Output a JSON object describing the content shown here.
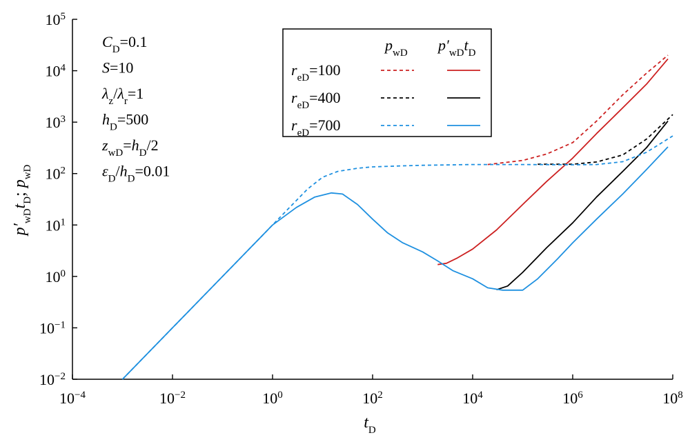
{
  "chart_data": {
    "type": "line",
    "x_scale": "log",
    "y_scale": "log",
    "xlim": [
      0.0001,
      100000000
    ],
    "ylim": [
      0.01,
      100000
    ],
    "x_ticks": [
      {
        "value": 0.0001,
        "base": "10",
        "exp": "−4"
      },
      {
        "value": 0.01,
        "base": "10",
        "exp": "−2"
      },
      {
        "value": 1,
        "base": "10",
        "exp": "0"
      },
      {
        "value": 100,
        "base": "10",
        "exp": "2"
      },
      {
        "value": 10000,
        "base": "10",
        "exp": "4"
      },
      {
        "value": 1000000,
        "base": "10",
        "exp": "6"
      },
      {
        "value": 100000000,
        "base": "10",
        "exp": "8"
      }
    ],
    "y_ticks": [
      {
        "value": 0.01,
        "base": "10",
        "exp": "−2"
      },
      {
        "value": 0.1,
        "base": "10",
        "exp": "−1"
      },
      {
        "value": 1,
        "base": "10",
        "exp": "0"
      },
      {
        "value": 10,
        "base": "10",
        "exp": "1"
      },
      {
        "value": 100,
        "base": "10",
        "exp": "2"
      },
      {
        "value": 1000,
        "base": "10",
        "exp": "3"
      },
      {
        "value": 10000,
        "base": "10",
        "exp": "4"
      },
      {
        "value": 100000,
        "base": "10",
        "exp": "5"
      }
    ],
    "xlabel": {
      "main": "t",
      "sub": "D"
    },
    "ylabel": {
      "p1": "p′",
      "s1": "wD",
      "t1": "t",
      "s2": "D",
      "sep": "; ",
      "p2": "p",
      "s3": "wD"
    },
    "legend": {
      "placement": "top-center",
      "column_headers": [
        {
          "main": "p",
          "sub": "wD"
        },
        {
          "main": "p′",
          "sub": "wD",
          "main2": "t",
          "sub2": "D"
        }
      ],
      "entries": [
        {
          "r": "r",
          "sub": "eD",
          "value": "=100",
          "color": "#cc2020"
        },
        {
          "r": "r",
          "sub": "eD",
          "value": "=400",
          "color": "#000000"
        },
        {
          "r": "r",
          "sub": "eD",
          "value": "=700",
          "color": "#1e90e0"
        }
      ]
    },
    "annotations": [
      {
        "a": "C",
        "as": "D",
        "rest": "=0.1"
      },
      {
        "a": "S",
        "rest": "=10"
      },
      {
        "a": "λ",
        "as": "z",
        "mid": "/",
        "b": "λ",
        "bs": "r",
        "rest": "=1"
      },
      {
        "a": "h",
        "as": "D",
        "rest": "=500"
      },
      {
        "a": "z",
        "as": "wD",
        "rest": "=",
        "b": "h",
        "bs": "D",
        "rest2": "/2"
      },
      {
        "a": "ε",
        "as": "D",
        "mid": "/",
        "b": "h",
        "bs": "D",
        "rest": "=0.01"
      }
    ],
    "series": [
      {
        "legend_index": 0,
        "kind": "pwD",
        "color": "#cc2020",
        "dash": true,
        "points": [
          [
            20000,
            150
          ],
          [
            100000,
            180
          ],
          [
            300000,
            240
          ],
          [
            1000000,
            400
          ],
          [
            3000000,
            1050
          ],
          [
            10000000,
            3400
          ],
          [
            30000000,
            9000
          ],
          [
            80000000,
            20000
          ]
        ]
      },
      {
        "legend_index": 0,
        "kind": "derivative",
        "color": "#cc2020",
        "dash": false,
        "points": [
          [
            2000,
            1.7
          ],
          [
            3000,
            1.8
          ],
          [
            5000,
            2.3
          ],
          [
            10000,
            3.4
          ],
          [
            30000,
            8
          ],
          [
            100000,
            25
          ],
          [
            300000,
            70
          ],
          [
            1000000,
            200
          ],
          [
            3000000,
            600
          ],
          [
            10000000,
            1900
          ],
          [
            30000000,
            5500
          ],
          [
            80000000,
            17000
          ]
        ]
      },
      {
        "legend_index": 1,
        "kind": "pwD",
        "color": "#000000",
        "dash": true,
        "points": [
          [
            200000,
            152
          ],
          [
            1000000,
            152
          ],
          [
            3000000,
            168
          ],
          [
            10000000,
            230
          ],
          [
            30000000,
            470
          ],
          [
            100000000,
            1400
          ]
        ]
      },
      {
        "legend_index": 1,
        "kind": "derivative",
        "color": "#000000",
        "dash": false,
        "points": [
          [
            30000,
            0.55
          ],
          [
            50000,
            0.65
          ],
          [
            100000,
            1.2
          ],
          [
            300000,
            3.6
          ],
          [
            1000000,
            11
          ],
          [
            3000000,
            35
          ],
          [
            10000000,
            110
          ],
          [
            30000000,
            320
          ],
          [
            80000000,
            1050
          ]
        ]
      },
      {
        "legend_index": 2,
        "kind": "pwD",
        "color": "#1e90e0",
        "dash": true,
        "points": [
          [
            0.001,
            0.01
          ],
          [
            0.01,
            0.1
          ],
          [
            0.1,
            1
          ],
          [
            0.3,
            3
          ],
          [
            1,
            10
          ],
          [
            2,
            20
          ],
          [
            5,
            50
          ],
          [
            10,
            85
          ],
          [
            20,
            110
          ],
          [
            50,
            127
          ],
          [
            100,
            135
          ],
          [
            300,
            140
          ],
          [
            1000,
            145
          ],
          [
            10000,
            150
          ],
          [
            100000,
            150
          ],
          [
            1000000,
            148
          ],
          [
            3000000,
            150
          ],
          [
            10000000,
            170
          ],
          [
            30000000,
            260
          ],
          [
            100000000,
            540
          ]
        ]
      },
      {
        "legend_index": 2,
        "kind": "derivative",
        "color": "#1e90e0",
        "dash": false,
        "points": [
          [
            0.001,
            0.01
          ],
          [
            0.01,
            0.1
          ],
          [
            0.1,
            1
          ],
          [
            1,
            10
          ],
          [
            3,
            22
          ],
          [
            7,
            35
          ],
          [
            15,
            42
          ],
          [
            25,
            40
          ],
          [
            50,
            25
          ],
          [
            100,
            13
          ],
          [
            200,
            7
          ],
          [
            400,
            4.5
          ],
          [
            1000,
            3
          ],
          [
            2000,
            2
          ],
          [
            4000,
            1.3
          ],
          [
            10000,
            0.9
          ],
          [
            20000,
            0.6
          ],
          [
            40000,
            0.54
          ],
          [
            100000,
            0.54
          ],
          [
            200000,
            0.9
          ],
          [
            500000,
            2.2
          ],
          [
            1000000,
            4.5
          ],
          [
            3000000,
            13
          ],
          [
            10000000,
            40
          ],
          [
            30000000,
            120
          ],
          [
            80000000,
            330
          ]
        ]
      }
    ]
  }
}
